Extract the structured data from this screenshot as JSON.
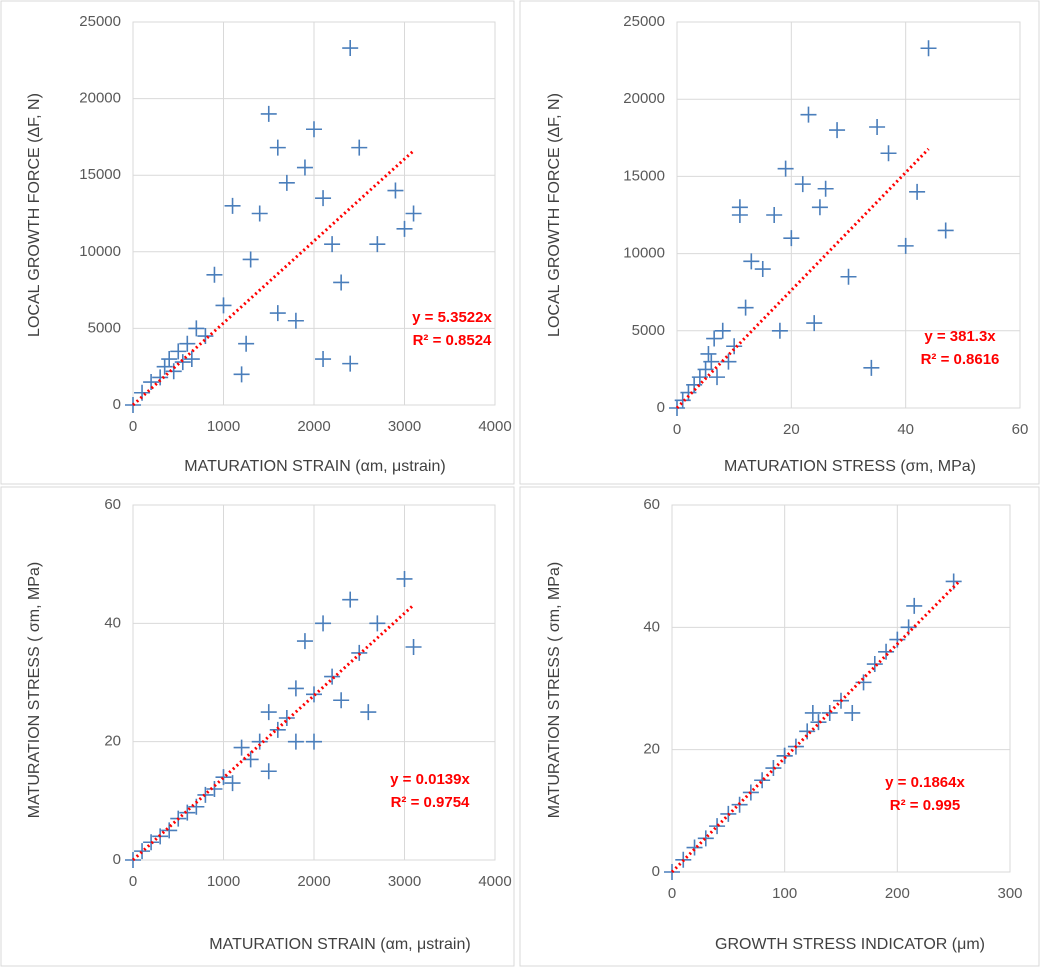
{
  "chart_data": [
    {
      "type": "scatter",
      "ylabel": "LOCAL GROWTH FORCE (ΔF, N)",
      "xlabel": "MATURATION STRAIN (αm, μstrain)",
      "xlim": [
        0,
        4000
      ],
      "xticks": [
        0,
        1000,
        2000,
        3000,
        4000
      ],
      "ylim": [
        0,
        25000
      ],
      "yticks": [
        0,
        5000,
        10000,
        15000,
        20000,
        25000
      ],
      "grid": true,
      "color": "#4a7ebb",
      "trend_color": "#ff0000",
      "x": [
        0,
        100,
        200,
        300,
        350,
        400,
        450,
        500,
        550,
        600,
        650,
        700,
        800,
        900,
        1000,
        1100,
        1200,
        1300,
        1400,
        1500,
        1600,
        1700,
        1800,
        1900,
        2000,
        2100,
        2200,
        2300,
        2400,
        2500,
        2700,
        2900,
        3000,
        3100,
        1600,
        2400,
        2100,
        1250
      ],
      "values": [
        0,
        800,
        1500,
        1800,
        2500,
        3000,
        2200,
        3500,
        2800,
        4000,
        3000,
        5000,
        4500,
        8500,
        6500,
        13000,
        2000,
        9500,
        12500,
        19000,
        6000,
        14500,
        5500,
        15500,
        18000,
        3000,
        10500,
        8000,
        23300,
        16800,
        10500,
        14000,
        11500,
        12500,
        16800,
        2700,
        13500,
        4000
      ],
      "trendline": {
        "slope": 5.3522,
        "x_end": 3100
      },
      "annotations": [
        "y = 5.3522x",
        "R² = 0.8524"
      ]
    },
    {
      "type": "scatter",
      "ylabel": "LOCAL GROWTH FORCE (ΔF, N)",
      "xlabel": "MATURATION STRESS (σm, MPa)",
      "xlim": [
        0,
        60
      ],
      "xticks": [
        0,
        20,
        40,
        60
      ],
      "ylim": [
        0,
        25000
      ],
      "yticks": [
        0,
        5000,
        10000,
        15000,
        20000,
        25000
      ],
      "grid": true,
      "color": "#4a7ebb",
      "trend_color": "#ff0000",
      "x": [
        0,
        1,
        2,
        3,
        4,
        5,
        5.5,
        6,
        6.5,
        7,
        8,
        9,
        10,
        11,
        12,
        13,
        15,
        17,
        18,
        19,
        20,
        22,
        23,
        25,
        26,
        28,
        30,
        34,
        35,
        37,
        40,
        42,
        44,
        47,
        24,
        11
      ],
      "values": [
        0,
        500,
        1000,
        1500,
        2000,
        2500,
        3500,
        3000,
        4500,
        2000,
        5000,
        3000,
        4000,
        13000,
        6500,
        9500,
        9000,
        12500,
        5000,
        15500,
        11000,
        14500,
        19000,
        13000,
        14200,
        18000,
        8500,
        2600,
        18200,
        16500,
        10500,
        14000,
        23300,
        11500,
        5500,
        12500
      ],
      "trendline": {
        "slope": 381.3,
        "x_end": 44
      },
      "annotations": [
        "y = 381.3x",
        "R² = 0.8616"
      ]
    },
    {
      "type": "scatter",
      "ylabel": "MATURATION STRESS ( σm, MPa)",
      "xlabel": "MATURATION STRAIN (αm, μstrain)",
      "xlim": [
        0,
        4000
      ],
      "xticks": [
        0,
        1000,
        2000,
        3000,
        4000
      ],
      "ylim": [
        0,
        60
      ],
      "yticks": [
        0,
        20,
        40,
        60
      ],
      "grid": true,
      "color": "#4a7ebb",
      "trend_color": "#ff0000",
      "x": [
        0,
        100,
        200,
        300,
        400,
        500,
        600,
        700,
        800,
        900,
        1000,
        1100,
        1200,
        1300,
        1400,
        1500,
        1600,
        1700,
        1800,
        1900,
        2000,
        2100,
        2200,
        2300,
        2400,
        2500,
        2600,
        2700,
        3000,
        3100,
        2000,
        1500,
        1800
      ],
      "values": [
        0,
        1.5,
        3,
        4,
        5,
        7,
        8,
        9,
        11,
        12,
        14,
        13,
        19,
        17,
        20,
        25,
        22,
        24,
        29,
        37,
        20,
        40,
        31,
        27,
        44,
        35,
        25,
        40,
        47.5,
        36,
        28,
        15,
        20
      ],
      "trendline": {
        "slope": 0.0139,
        "x_end": 3100
      },
      "annotations": [
        "y = 0.0139x",
        "R² = 0.9754"
      ]
    },
    {
      "type": "scatter",
      "ylabel": "MATURATION STRESS ( σm, MPa)",
      "xlabel": "GROWTH STRESS INDICATOR  (μm)",
      "xlim": [
        0,
        300
      ],
      "xticks": [
        0,
        100,
        200,
        300
      ],
      "ylim": [
        0,
        60
      ],
      "yticks": [
        0,
        20,
        40,
        60
      ],
      "grid": true,
      "color": "#4a7ebb",
      "trend_color": "#ff0000",
      "x": [
        0,
        10,
        20,
        30,
        40,
        50,
        60,
        70,
        80,
        90,
        100,
        110,
        120,
        130,
        140,
        150,
        160,
        170,
        180,
        190,
        200,
        210,
        215,
        250,
        125,
        100
      ],
      "values": [
        0,
        2,
        4,
        5.5,
        7.5,
        9.5,
        11,
        13,
        15,
        17,
        19,
        20.5,
        23,
        24.5,
        26,
        28,
        26,
        31,
        34,
        36,
        38,
        40,
        43.5,
        47.5,
        26,
        19
      ],
      "trendline": {
        "slope": 0.1864,
        "x_end": 255
      },
      "annotations": [
        "y = 0.1864x",
        "R² = 0.995"
      ]
    }
  ]
}
